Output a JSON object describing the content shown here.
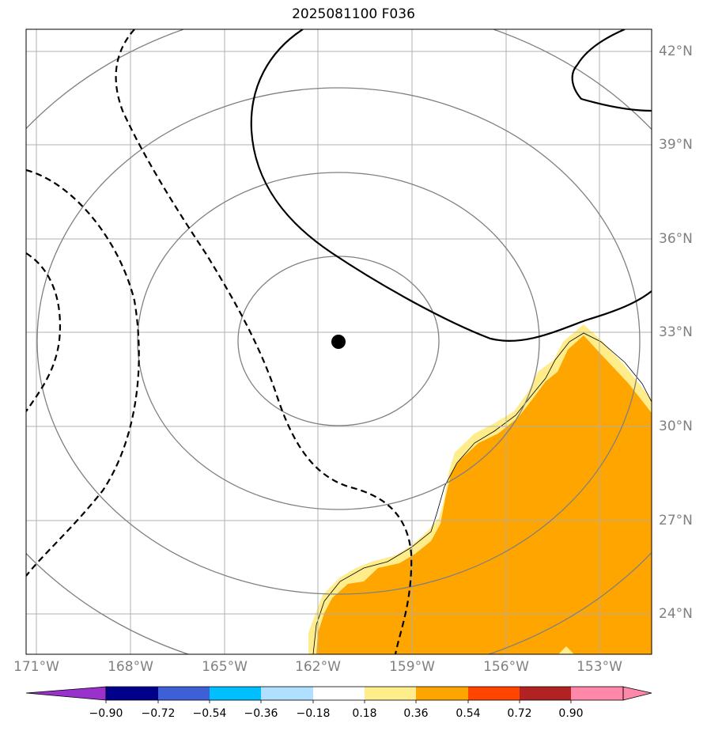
{
  "title": "2025081100 F036",
  "lon_ticks": [
    "171°W",
    "168°W",
    "165°W",
    "162°W",
    "159°W",
    "156°W",
    "153°W"
  ],
  "lat_ticks": [
    "42°N",
    "39°N",
    "36°N",
    "33°N",
    "30°N",
    "27°N",
    "24°N"
  ],
  "colorbar": {
    "labels": [
      "−0.90",
      "−0.72",
      "−0.54",
      "−0.36",
      "−0.18",
      "0.18",
      "0.36",
      "0.54",
      "0.72",
      "0.90"
    ],
    "colors": [
      "#9932cc",
      "#00008b",
      "#3f5fd6",
      "#00bfff",
      "#b0e0ff",
      "#ffffff",
      "#ffec8b",
      "#ffa500",
      "#ff4500",
      "#b22222",
      "#ff88aa"
    ]
  },
  "storm_center": {
    "lon": -161.0,
    "lat": 32.7
  },
  "fill_colors": {
    "inner": "#ffa500",
    "edge": "#ffec8b"
  },
  "range_ring_color": "#808080",
  "grid_color": "#b0b0b0"
}
